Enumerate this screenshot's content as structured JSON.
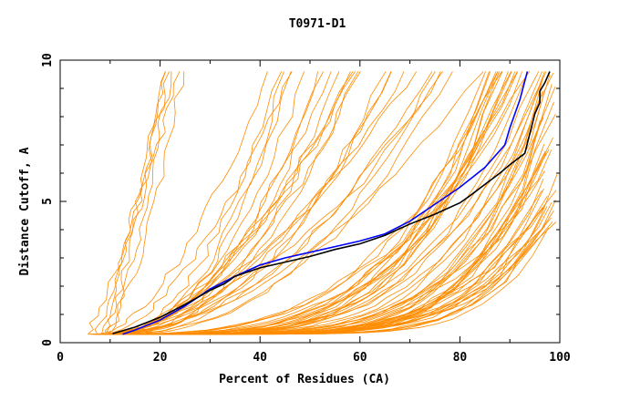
{
  "chart_data": {
    "type": "line",
    "title": "T0971-D1",
    "xlabel": "Percent of Residues (CA)",
    "ylabel": "Distance Cutoff, A",
    "xlim": [
      0,
      100
    ],
    "ylim": [
      0,
      10
    ],
    "x_ticks": [
      "0",
      "20",
      "40",
      "60",
      "80",
      "100"
    ],
    "y_ticks": [
      "0",
      "5",
      "10"
    ],
    "grid": false,
    "legend": "none",
    "colors": {
      "background_series": "#ff8c00",
      "highlight_a": "#0000ff",
      "highlight_b": "#000000",
      "axis": "#000000"
    },
    "highlight_series": [
      {
        "color": "#0000ff",
        "points": [
          [
            12.5,
            0.3
          ],
          [
            15,
            0.45
          ],
          [
            20,
            0.8
          ],
          [
            25,
            1.3
          ],
          [
            30,
            1.9
          ],
          [
            35,
            2.35
          ],
          [
            40,
            2.75
          ],
          [
            45,
            3.0
          ],
          [
            50,
            3.2
          ],
          [
            55,
            3.4
          ],
          [
            60,
            3.6
          ],
          [
            65,
            3.85
          ],
          [
            70,
            4.3
          ],
          [
            75,
            4.9
          ],
          [
            80,
            5.5
          ],
          [
            85,
            6.2
          ],
          [
            89,
            7.0
          ],
          [
            90,
            7.6
          ],
          [
            92,
            8.6
          ],
          [
            93.5,
            9.6
          ]
        ]
      },
      {
        "color": "#000000",
        "points": [
          [
            10.5,
            0.32
          ],
          [
            15,
            0.55
          ],
          [
            20,
            0.9
          ],
          [
            25,
            1.35
          ],
          [
            30,
            1.85
          ],
          [
            33,
            2.1
          ],
          [
            35,
            2.35
          ],
          [
            40,
            2.65
          ],
          [
            45,
            2.85
          ],
          [
            50,
            3.05
          ],
          [
            55,
            3.3
          ],
          [
            60,
            3.5
          ],
          [
            65,
            3.8
          ],
          [
            70,
            4.2
          ],
          [
            75,
            4.55
          ],
          [
            80,
            4.95
          ],
          [
            82,
            5.2
          ],
          [
            85,
            5.6
          ],
          [
            88,
            6.0
          ],
          [
            90,
            6.3
          ],
          [
            93,
            6.7
          ],
          [
            94,
            7.4
          ],
          [
            95,
            8.1
          ],
          [
            96,
            8.5
          ],
          [
            96,
            8.9
          ],
          [
            97,
            9.2
          ],
          [
            98,
            9.6
          ]
        ]
      }
    ],
    "background_series_count": 90
  }
}
